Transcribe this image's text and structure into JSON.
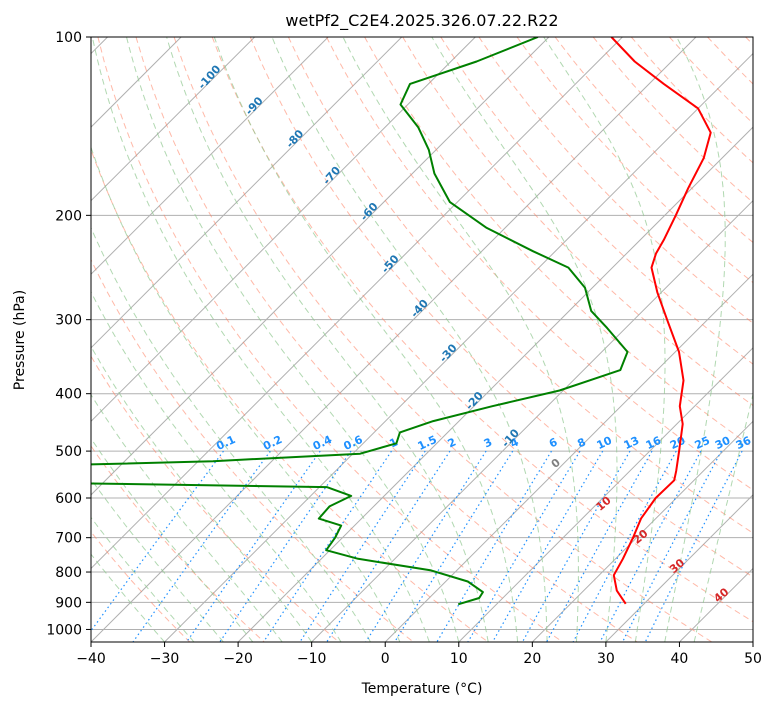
{
  "chart_data": {
    "type": "line",
    "title": "wetPf2_C2E4.2025.326.07.22.R22",
    "xlabel": "Temperature (°C)",
    "ylabel": "Pressure (hPa)",
    "xlim": [
      -40,
      50
    ],
    "ylim": [
      1050,
      100
    ],
    "y_scale": "log",
    "grid": true,
    "x_ticks": [
      -40,
      -30,
      -20,
      -10,
      0,
      10,
      20,
      30,
      40,
      50
    ],
    "y_ticks": [
      100,
      200,
      300,
      400,
      500,
      600,
      700,
      800,
      900,
      1000
    ],
    "skew_axis_values": [
      -100,
      -90,
      -80,
      -70,
      -60,
      -50,
      -40,
      -30,
      -20,
      -10
    ],
    "mixing_ratio_labels": [
      "0.1",
      "0.2",
      "0.4",
      "0.6",
      "1",
      "1.5",
      "2",
      "3",
      "4",
      "6",
      "8",
      "10",
      "13",
      "16",
      "20",
      "25",
      "30",
      "36"
    ],
    "dry_adiabat_labels": [
      "0",
      "10",
      "20",
      "30",
      "40"
    ],
    "colors": {
      "temperature": "#ff0000",
      "dewpoint": "#008000",
      "skew_label": "#1f77b4",
      "mixing_ratio": "#1e90ff",
      "adiabat_label": "#d62728",
      "dry_adiabat": "#ff8060",
      "moist_adiabat": "#90c890",
      "grid": "#b0b0b0"
    },
    "series": [
      {
        "key": "temperature",
        "points": [
          {
            "p": 905,
            "t": 27.5
          },
          {
            "p": 860,
            "t": 24.5
          },
          {
            "p": 810,
            "t": 22.0
          },
          {
            "p": 760,
            "t": 21.0
          },
          {
            "p": 700,
            "t": 19.5
          },
          {
            "p": 650,
            "t": 18.0
          },
          {
            "p": 600,
            "t": 17.2
          },
          {
            "p": 560,
            "t": 17.3
          },
          {
            "p": 540,
            "t": 16.3
          },
          {
            "p": 500,
            "t": 14.0
          },
          {
            "p": 450,
            "t": 10.8
          },
          {
            "p": 420,
            "t": 8.0
          },
          {
            "p": 380,
            "t": 5.0
          },
          {
            "p": 340,
            "t": 0.5
          },
          {
            "p": 300,
            "t": -5.5
          },
          {
            "p": 270,
            "t": -10.5
          },
          {
            "p": 245,
            "t": -14.7
          },
          {
            "p": 232,
            "t": -16.0
          },
          {
            "p": 220,
            "t": -16.8
          },
          {
            "p": 200,
            "t": -18.5
          },
          {
            "p": 180,
            "t": -20.5
          },
          {
            "p": 160,
            "t": -22.5
          },
          {
            "p": 145,
            "t": -25.0
          },
          {
            "p": 132,
            "t": -30.0
          },
          {
            "p": 120,
            "t": -38.0
          },
          {
            "p": 110,
            "t": -45.0
          },
          {
            "p": 100,
            "t": -51.5
          }
        ]
      },
      {
        "key": "dewpoint",
        "points": [
          {
            "p": 907,
            "t": 4.8
          },
          {
            "p": 885,
            "t": 6.8
          },
          {
            "p": 865,
            "t": 6.5
          },
          {
            "p": 830,
            "t": 3.0
          },
          {
            "p": 795,
            "t": -3.5
          },
          {
            "p": 760,
            "t": -15.0
          },
          {
            "p": 735,
            "t": -20.5
          },
          {
            "p": 700,
            "t": -21.0
          },
          {
            "p": 668,
            "t": -21.8
          },
          {
            "p": 650,
            "t": -25.8
          },
          {
            "p": 620,
            "t": -26.0
          },
          {
            "p": 595,
            "t": -24.5
          },
          {
            "p": 575,
            "t": -29.0
          },
          {
            "p": 565,
            "t": -70.0
          },
          {
            "p": 534,
            "t": -82.0
          },
          {
            "p": 520,
            "t": -48.0
          },
          {
            "p": 505,
            "t": -29.0
          },
          {
            "p": 485,
            "t": -25.5
          },
          {
            "p": 465,
            "t": -26.5
          },
          {
            "p": 445,
            "t": -23.5
          },
          {
            "p": 420,
            "t": -17.5
          },
          {
            "p": 395,
            "t": -10.5
          },
          {
            "p": 365,
            "t": -5.0
          },
          {
            "p": 340,
            "t": -6.5
          },
          {
            "p": 310,
            "t": -12.5
          },
          {
            "p": 290,
            "t": -17.0
          },
          {
            "p": 265,
            "t": -21.0
          },
          {
            "p": 245,
            "t": -26.0
          },
          {
            "p": 230,
            "t": -33.0
          },
          {
            "p": 210,
            "t": -42.5
          },
          {
            "p": 190,
            "t": -51.0
          },
          {
            "p": 170,
            "t": -57.0
          },
          {
            "p": 155,
            "t": -61.0
          },
          {
            "p": 142,
            "t": -65.5
          },
          {
            "p": 130,
            "t": -71.0
          },
          {
            "p": 120,
            "t": -72.5
          },
          {
            "p": 110,
            "t": -66.5
          },
          {
            "p": 100,
            "t": -61.5
          }
        ]
      }
    ]
  }
}
